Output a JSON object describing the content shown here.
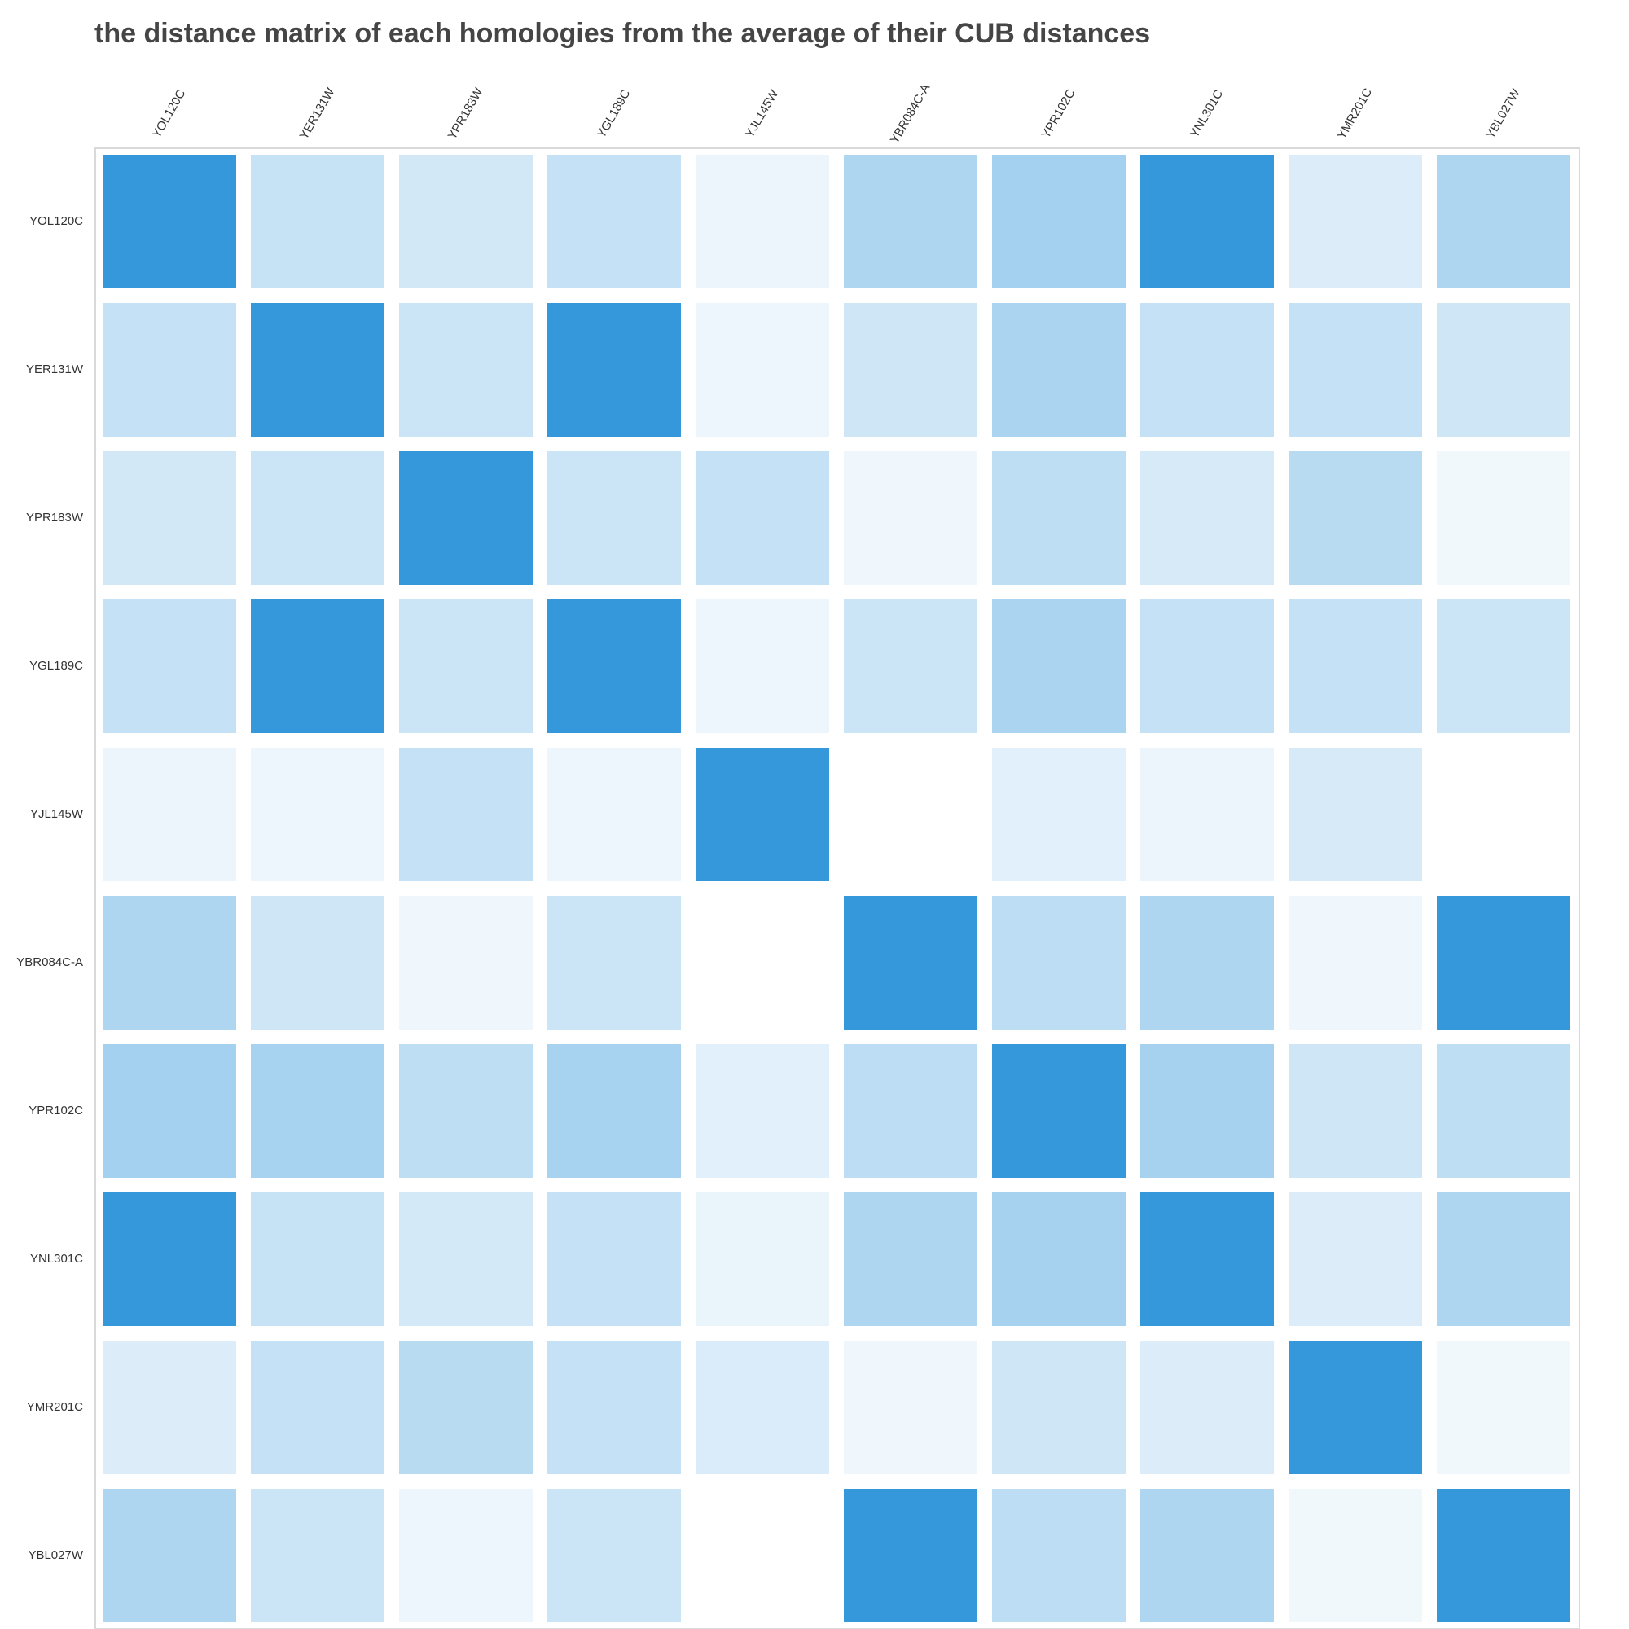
{
  "chart_data": {
    "type": "heatmap",
    "title": "the distance matrix of each homologies from the average of their CUB distances",
    "xlabel": "",
    "ylabel": "",
    "x_labels": [
      "YOL120C",
      "YER131W",
      "YPR183W",
      "YGL189C",
      "YJL145W",
      "YBR084C-A",
      "YPR102C",
      "YNL301C",
      "YMR201C",
      "YBL027W"
    ],
    "y_labels": [
      "YOL120C",
      "YER131W",
      "YPR183W",
      "YGL189C",
      "YJL145W",
      "YBR084C-A",
      "YPR102C",
      "YNL301C",
      "YMR201C",
      "YBL027W"
    ],
    "values": [
      [
        1.0,
        0.28,
        0.22,
        0.29,
        0.1,
        0.4,
        0.45,
        1.0,
        0.17,
        0.4
      ],
      [
        0.29,
        1.0,
        0.25,
        1.0,
        0.09,
        0.24,
        0.42,
        0.29,
        0.29,
        0.24
      ],
      [
        0.22,
        0.25,
        1.0,
        0.25,
        0.29,
        0.08,
        0.32,
        0.2,
        0.35,
        0.07
      ],
      [
        0.29,
        1.0,
        0.25,
        1.0,
        0.09,
        0.25,
        0.42,
        0.29,
        0.29,
        0.25
      ],
      [
        0.1,
        0.09,
        0.29,
        0.09,
        1.0,
        0.0,
        0.15,
        0.1,
        0.2,
        0.0
      ],
      [
        0.4,
        0.24,
        0.08,
        0.25,
        0.0,
        1.0,
        0.33,
        0.4,
        0.08,
        1.0
      ],
      [
        0.45,
        0.43,
        0.32,
        0.43,
        0.15,
        0.33,
        1.0,
        0.44,
        0.24,
        0.32
      ],
      [
        1.0,
        0.28,
        0.21,
        0.29,
        0.11,
        0.4,
        0.44,
        1.0,
        0.17,
        0.4
      ],
      [
        0.17,
        0.29,
        0.35,
        0.29,
        0.18,
        0.08,
        0.24,
        0.17,
        1.0,
        0.07
      ],
      [
        0.4,
        0.25,
        0.09,
        0.25,
        0.0,
        1.0,
        0.33,
        0.4,
        0.07,
        1.0
      ]
    ],
    "value_range": [
      0,
      1
    ],
    "colormap": {
      "low": "#ffffff",
      "high": "#3498db"
    },
    "grid": false,
    "legend": "none"
  }
}
